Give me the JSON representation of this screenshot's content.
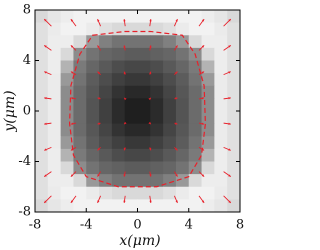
{
  "chart_data": {
    "type": "heatmap",
    "xlabel": "x(μm)",
    "ylabel": "y(μm)",
    "xlim": [
      -8,
      8
    ],
    "ylim": [
      -8,
      8
    ],
    "xticks": [
      -8,
      -4,
      0,
      4,
      8
    ],
    "yticks": [
      -8,
      -4,
      0,
      4,
      8
    ],
    "z": [
      [
        0.85,
        0.9,
        0.93,
        0.95,
        0.95,
        0.95,
        0.95,
        0.95,
        0.95,
        0.95,
        0.95,
        0.95,
        0.95,
        0.93,
        0.9,
        0.85
      ],
      [
        0.88,
        0.92,
        0.95,
        0.95,
        0.92,
        0.88,
        0.85,
        0.85,
        0.85,
        0.85,
        0.88,
        0.92,
        0.95,
        0.95,
        0.92,
        0.88
      ],
      [
        0.88,
        0.93,
        0.93,
        0.85,
        0.6,
        0.5,
        0.45,
        0.45,
        0.45,
        0.45,
        0.5,
        0.6,
        0.85,
        0.93,
        0.93,
        0.88
      ],
      [
        0.88,
        0.93,
        0.85,
        0.55,
        0.45,
        0.4,
        0.38,
        0.36,
        0.36,
        0.38,
        0.4,
        0.45,
        0.55,
        0.85,
        0.93,
        0.88
      ],
      [
        0.88,
        0.93,
        0.7,
        0.48,
        0.4,
        0.35,
        0.3,
        0.28,
        0.28,
        0.3,
        0.35,
        0.4,
        0.48,
        0.7,
        0.93,
        0.88
      ],
      [
        0.88,
        0.92,
        0.6,
        0.45,
        0.36,
        0.3,
        0.25,
        0.22,
        0.22,
        0.25,
        0.3,
        0.36,
        0.45,
        0.6,
        0.92,
        0.88
      ],
      [
        0.88,
        0.92,
        0.55,
        0.42,
        0.34,
        0.27,
        0.2,
        0.16,
        0.16,
        0.2,
        0.27,
        0.34,
        0.42,
        0.55,
        0.92,
        0.88
      ],
      [
        0.88,
        0.92,
        0.55,
        0.42,
        0.33,
        0.25,
        0.17,
        0.12,
        0.12,
        0.17,
        0.25,
        0.33,
        0.42,
        0.55,
        0.92,
        0.88
      ],
      [
        0.88,
        0.92,
        0.55,
        0.42,
        0.33,
        0.25,
        0.17,
        0.12,
        0.12,
        0.17,
        0.25,
        0.33,
        0.42,
        0.55,
        0.92,
        0.88
      ],
      [
        0.88,
        0.92,
        0.55,
        0.42,
        0.34,
        0.27,
        0.2,
        0.16,
        0.16,
        0.2,
        0.27,
        0.34,
        0.42,
        0.55,
        0.92,
        0.88
      ],
      [
        0.88,
        0.92,
        0.6,
        0.45,
        0.36,
        0.3,
        0.25,
        0.22,
        0.22,
        0.25,
        0.3,
        0.36,
        0.45,
        0.6,
        0.92,
        0.88
      ],
      [
        0.88,
        0.93,
        0.7,
        0.48,
        0.4,
        0.35,
        0.3,
        0.28,
        0.28,
        0.3,
        0.35,
        0.4,
        0.48,
        0.7,
        0.93,
        0.88
      ],
      [
        0.88,
        0.93,
        0.85,
        0.55,
        0.45,
        0.4,
        0.38,
        0.36,
        0.36,
        0.38,
        0.4,
        0.45,
        0.55,
        0.85,
        0.93,
        0.88
      ],
      [
        0.88,
        0.93,
        0.93,
        0.85,
        0.6,
        0.5,
        0.45,
        0.45,
        0.45,
        0.45,
        0.5,
        0.6,
        0.85,
        0.93,
        0.93,
        0.88
      ],
      [
        0.88,
        0.92,
        0.95,
        0.95,
        0.92,
        0.88,
        0.85,
        0.85,
        0.85,
        0.85,
        0.88,
        0.92,
        0.95,
        0.95,
        0.92,
        0.88
      ],
      [
        0.85,
        0.9,
        0.93,
        0.95,
        0.95,
        0.95,
        0.95,
        0.95,
        0.95,
        0.95,
        0.95,
        0.95,
        0.95,
        0.93,
        0.9,
        0.85
      ]
    ],
    "quiver": {
      "color": "#e8202a",
      "x": [
        -7,
        -5,
        -3,
        -1,
        1,
        3,
        5,
        7
      ],
      "y": [
        7,
        5,
        3,
        1,
        -1,
        -3,
        -5,
        -7
      ],
      "u": [
        [
          -0.56,
          -0.4,
          -0.24,
          -0.08,
          0.08,
          0.24,
          0.4,
          0.56
        ],
        [
          -0.56,
          -0.4,
          -0.24,
          -0.08,
          0.08,
          0.24,
          0.4,
          0.56
        ],
        [
          -0.56,
          -0.4,
          -0.24,
          -0.08,
          0.08,
          0.24,
          0.4,
          0.56
        ],
        [
          -0.56,
          -0.4,
          -0.24,
          -0.08,
          0.08,
          0.24,
          0.4,
          0.56
        ],
        [
          -0.56,
          -0.4,
          -0.24,
          -0.08,
          0.08,
          0.24,
          0.4,
          0.56
        ],
        [
          -0.56,
          -0.4,
          -0.24,
          -0.08,
          0.08,
          0.24,
          0.4,
          0.56
        ],
        [
          -0.56,
          -0.4,
          -0.24,
          -0.08,
          0.08,
          0.24,
          0.4,
          0.56
        ],
        [
          -0.56,
          -0.4,
          -0.24,
          -0.08,
          0.08,
          0.24,
          0.4,
          0.56
        ]
      ],
      "v": [
        [
          0.56,
          0.56,
          0.56,
          0.56,
          0.56,
          0.56,
          0.56,
          0.56
        ],
        [
          0.4,
          0.4,
          0.4,
          0.4,
          0.4,
          0.4,
          0.4,
          0.4
        ],
        [
          0.24,
          0.24,
          0.24,
          0.24,
          0.24,
          0.24,
          0.24,
          0.24
        ],
        [
          0.08,
          0.08,
          0.08,
          0.08,
          0.08,
          0.08,
          0.08,
          0.08
        ],
        [
          -0.08,
          -0.08,
          -0.08,
          -0.08,
          -0.08,
          -0.08,
          -0.08,
          -0.08
        ],
        [
          -0.24,
          -0.24,
          -0.24,
          -0.24,
          -0.24,
          -0.24,
          -0.24,
          -0.24
        ],
        [
          -0.4,
          -0.4,
          -0.4,
          -0.4,
          -0.4,
          -0.4,
          -0.4,
          -0.4
        ],
        [
          -0.56,
          -0.56,
          -0.56,
          -0.56,
          -0.56,
          -0.56,
          -0.56,
          -0.56
        ]
      ]
    },
    "contour": {
      "color": "#e8202a",
      "x": [
        -3.5,
        -1,
        1,
        3.5,
        4.5,
        5.2,
        5.3,
        5,
        4,
        1.5,
        -1.5,
        -4,
        -5,
        -5.3,
        -5.2,
        -4.5
      ],
      "y": [
        6,
        6.3,
        6.3,
        6,
        4.5,
        2,
        -1,
        -3.5,
        -5.2,
        -6,
        -6,
        -5.2,
        -3.5,
        -1,
        2,
        4.5
      ]
    }
  }
}
